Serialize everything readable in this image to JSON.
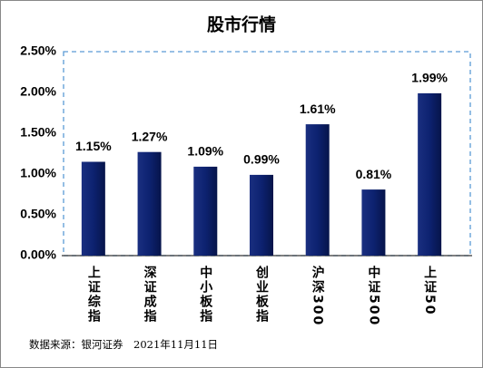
{
  "chart_data": {
    "type": "bar",
    "title": "股市行情",
    "categories": [
      "上证综指",
      "深证成指",
      "中小板指",
      "创业板指",
      "沪深300",
      "中证500",
      "上证50"
    ],
    "values": [
      1.15,
      1.27,
      1.09,
      0.99,
      1.61,
      0.81,
      1.99
    ],
    "value_labels": [
      "1.15%",
      "1.27%",
      "1.09%",
      "0.99%",
      "1.61%",
      "0.81%",
      "1.99%"
    ],
    "color": "#0d2270",
    "ylim": [
      0,
      2.5
    ],
    "yticks": [
      {
        "value": 0,
        "label": "0.00%"
      },
      {
        "value": 0.5,
        "label": "0.50%"
      },
      {
        "value": 1,
        "label": "1.00%"
      },
      {
        "value": 1.5,
        "label": "1.50%"
      },
      {
        "value": 2,
        "label": "2.00%"
      },
      {
        "value": 2.5,
        "label": "2.50%"
      }
    ],
    "note": "数据来源：银河证券　2021年11月11日"
  }
}
